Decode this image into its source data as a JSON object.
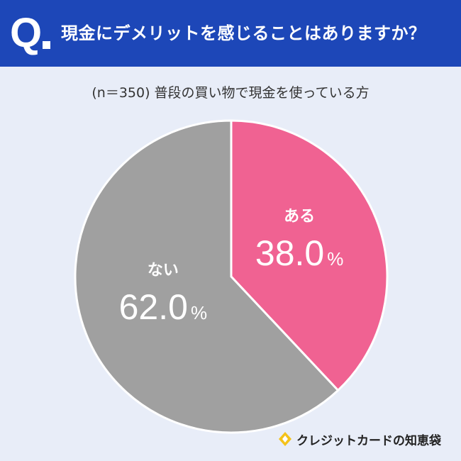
{
  "header": {
    "q_mark": "Q",
    "question": "現金にデメリットを感じることはありますか？"
  },
  "subtitle": "(n＝350) 普段の買い物で現金を使っている方",
  "colors": {
    "header_bg": "#1d47b8",
    "page_bg": "#e8edf8",
    "aru": "#f06292",
    "nai": "#a0a0a0"
  },
  "brand": {
    "name": "クレジットカードの知恵袋",
    "icon": "gold-diamond-icon"
  },
  "chart_data": {
    "type": "pie",
    "title": "",
    "slices": [
      {
        "label": "ある",
        "value": 38.0,
        "display": "38.0",
        "unit": "%",
        "color": "#f06292"
      },
      {
        "label": "ない",
        "value": 62.0,
        "display": "62.0",
        "unit": "%",
        "color": "#a0a0a0"
      }
    ],
    "start_angle": "12 o'clock",
    "direction": "clockwise"
  }
}
